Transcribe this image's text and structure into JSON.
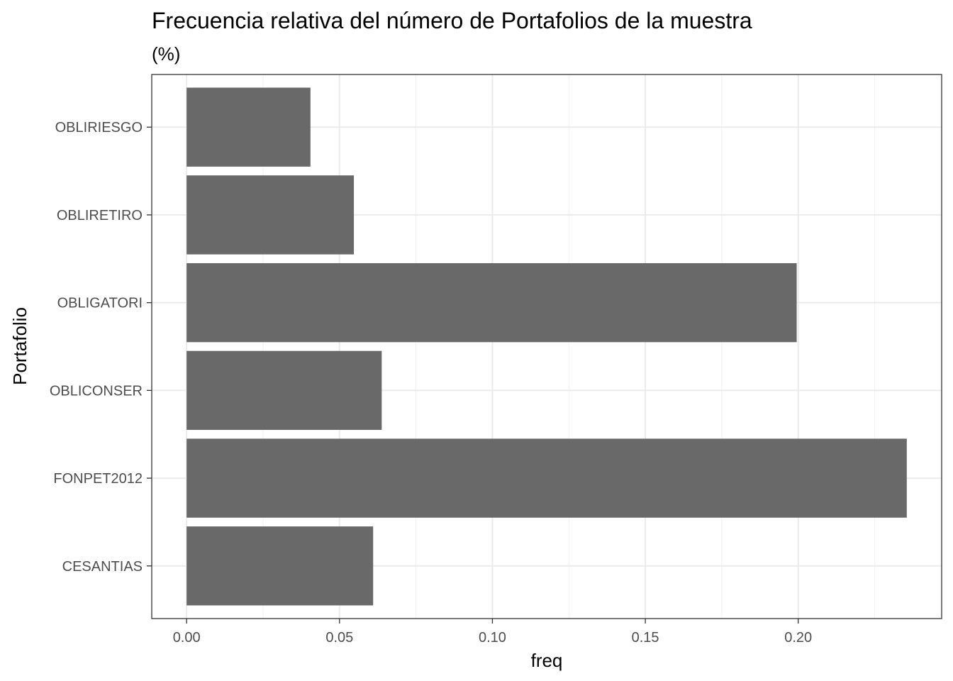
{
  "chart_data": {
    "type": "bar",
    "orientation": "horizontal",
    "title": "Frecuencia relativa del número de Portafolios de la muestra",
    "subtitle": "(%)",
    "xlabel": "freq",
    "ylabel": "Portafolio",
    "categories": [
      "CESANTIAS",
      "FONPET2012",
      "OBLICONSER",
      "OBLIGATORI",
      "OBLIRETIRO",
      "OBLIRIESGO"
    ],
    "values": [
      0.061,
      0.2355,
      0.0638,
      0.1995,
      0.0547,
      0.0405
    ],
    "xlim": [
      -0.0114,
      0.2469
    ],
    "xticks": [
      0.0,
      0.05,
      0.1,
      0.15,
      0.2
    ],
    "xtick_labels": [
      "0.00",
      "0.05",
      "0.10",
      "0.15",
      "0.20"
    ],
    "bar_color": "#696969",
    "grid": true,
    "legend": "none",
    "theme": "bw"
  }
}
